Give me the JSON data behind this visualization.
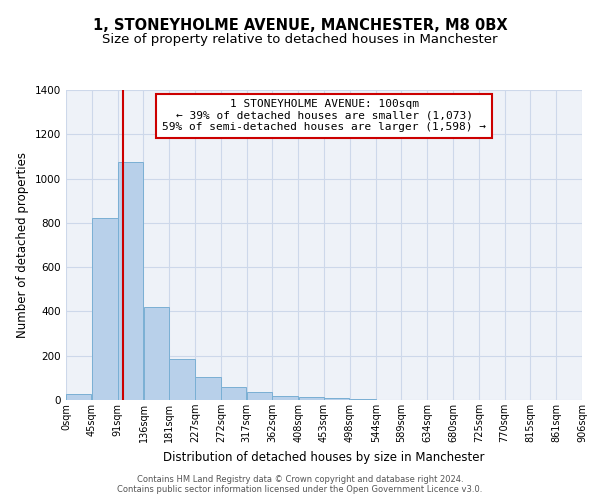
{
  "title": "1, STONEYHOLME AVENUE, MANCHESTER, M8 0BX",
  "subtitle": "Size of property relative to detached houses in Manchester",
  "xlabel": "Distribution of detached houses by size in Manchester",
  "ylabel": "Number of detached properties",
  "bar_color": "#b8d0ea",
  "bar_edge_color": "#7aafd4",
  "bin_edges": [
    0,
    45,
    91,
    136,
    181,
    227,
    272,
    317,
    362,
    408,
    453,
    498,
    544,
    589,
    634,
    680,
    725,
    770,
    815,
    861,
    906
  ],
  "bar_heights": [
    25,
    820,
    1075,
    420,
    185,
    105,
    60,
    38,
    20,
    15,
    10,
    5,
    0,
    0,
    0,
    0,
    0,
    0,
    0,
    0
  ],
  "tick_labels": [
    "0sqm",
    "45sqm",
    "91sqm",
    "136sqm",
    "181sqm",
    "227sqm",
    "272sqm",
    "317sqm",
    "362sqm",
    "408sqm",
    "453sqm",
    "498sqm",
    "544sqm",
    "589sqm",
    "634sqm",
    "680sqm",
    "725sqm",
    "770sqm",
    "815sqm",
    "861sqm",
    "906sqm"
  ],
  "ylim": [
    0,
    1400
  ],
  "property_line_x": 100,
  "property_line_color": "#cc0000",
  "annotation_text": "1 STONEYHOLME AVENUE: 100sqm\n← 39% of detached houses are smaller (1,073)\n59% of semi-detached houses are larger (1,598) →",
  "annotation_box_color": "#cc0000",
  "grid_color": "#cdd8ea",
  "bg_color": "#eef2f8",
  "footer_line1": "Contains HM Land Registry data © Crown copyright and database right 2024.",
  "footer_line2": "Contains public sector information licensed under the Open Government Licence v3.0.",
  "title_fontsize": 10.5,
  "subtitle_fontsize": 9.5,
  "annotation_fontsize": 8,
  "axis_label_fontsize": 8.5,
  "ylabel_fontsize": 8.5,
  "tick_fontsize": 7,
  "footer_fontsize": 6
}
